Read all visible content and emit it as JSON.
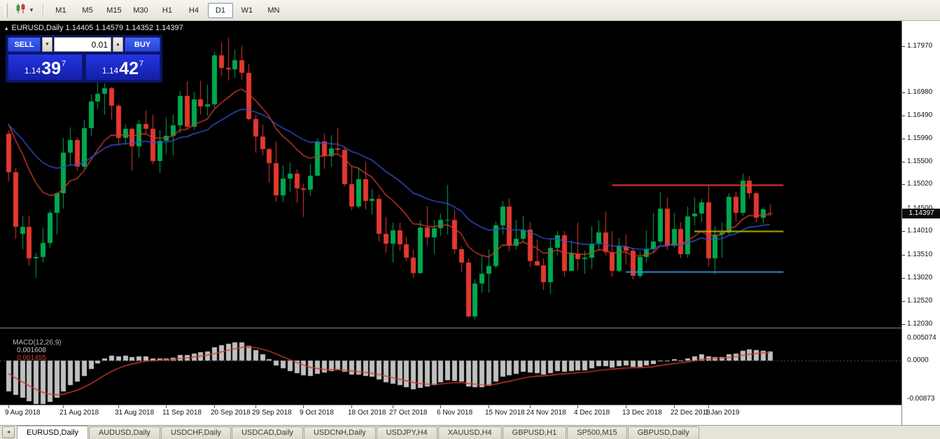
{
  "toolbar": {
    "chart_type_dropdown_icon": "candlestick-chart-icon",
    "timeframes": [
      "M1",
      "M5",
      "M15",
      "M30",
      "H1",
      "H4",
      "D1",
      "W1",
      "MN"
    ],
    "active_timeframe": "D1"
  },
  "chart": {
    "header": {
      "symbol": "EURUSD,Daily",
      "open": "1.14405",
      "high": "1.14579",
      "low": "1.14352",
      "close": "1.14397"
    },
    "trade_panel": {
      "sell_label": "SELL",
      "buy_label": "BUY",
      "volume": "0.01",
      "sell_price": {
        "base": "1.14",
        "pips": "39",
        "point": "7"
      },
      "buy_price": {
        "base": "1.14",
        "pips": "42",
        "point": "7"
      }
    },
    "price_axis_labels": [
      "1.17970",
      "1.16980",
      "1.16490",
      "1.15990",
      "1.15500",
      "1.15020",
      "1.14500",
      "1.14010",
      "1.13510",
      "1.13020",
      "1.12520",
      "1.12030"
    ],
    "current_price": "1.14397"
  },
  "macd_panel": {
    "name": "MACD(12,26,9)",
    "value_main": "0.001608",
    "value_signal": "0.001455",
    "scale_labels": [
      "0.005074",
      "0.0000",
      "-0.00873"
    ],
    "scale_values": [
      0.005074,
      0.0,
      -0.00873
    ]
  },
  "time_axis": {
    "labels": [
      {
        "text": "9 Aug 2018",
        "bar": 0
      },
      {
        "text": "21 Aug 2018",
        "bar": 8
      },
      {
        "text": "31 Aug 2018",
        "bar": 16
      },
      {
        "text": "11 Sep 2018",
        "bar": 23
      },
      {
        "text": "20 Sep 2018",
        "bar": 30
      },
      {
        "text": "29 Sep 2018",
        "bar": 36
      },
      {
        "text": "9 Oct 2018",
        "bar": 43
      },
      {
        "text": "18 Oct 2018",
        "bar": 50
      },
      {
        "text": "27 Oct 2018",
        "bar": 56
      },
      {
        "text": "6 Nov 2018",
        "bar": 63
      },
      {
        "text": "15 Nov 2018",
        "bar": 70
      },
      {
        "text": "24 Nov 2018",
        "bar": 76
      },
      {
        "text": "4 Dec 2018",
        "bar": 83
      },
      {
        "text": "13 Dec 2018",
        "bar": 90
      },
      {
        "text": "22 Dec 2018",
        "bar": 97
      },
      {
        "text": "1 Jan 2019",
        "bar": 102
      }
    ]
  },
  "tabs": {
    "items": [
      "EURUSD,Daily",
      "AUDUSD,Daily",
      "USDCHF,Daily",
      "USDCAD,Daily",
      "USDCNH,Daily",
      "USDJPY,H4",
      "XAUUSD,H4",
      "GBPUSD,H1",
      "SP500,M15",
      "GBPUSD,Daily"
    ],
    "active": "EURUSD,Daily"
  },
  "chart_data": {
    "type": "candlestick",
    "title": "EURUSD,Daily",
    "last_bar_ohlc": {
      "open": 1.14405,
      "high": 1.14579,
      "low": 1.14352,
      "close": 1.14397
    },
    "colors": {
      "background": "#000000",
      "bull": "#00A94F",
      "bear": "#E2382F",
      "ma_fast": "#CF3A2E",
      "ma_slow": "#3450D2"
    },
    "y_axis": {
      "min": 1.1195,
      "max": 1.1836
    },
    "bars": [
      [
        1.161,
        1.1618,
        1.1508,
        1.1527
      ],
      [
        1.1527,
        1.1536,
        1.1385,
        1.141
      ],
      [
        1.1395,
        1.1433,
        1.1363,
        1.141
      ],
      [
        1.141,
        1.1434,
        1.1329,
        1.1343
      ],
      [
        1.1343,
        1.1355,
        1.1301,
        1.1346
      ],
      [
        1.1346,
        1.1409,
        1.1334,
        1.1376
      ],
      [
        1.1376,
        1.1446,
        1.1365,
        1.144
      ],
      [
        1.144,
        1.1485,
        1.1394,
        1.1483
      ],
      [
        1.1483,
        1.1601,
        1.145,
        1.157
      ],
      [
        1.157,
        1.1623,
        1.1544,
        1.1597
      ],
      [
        1.1597,
        1.1603,
        1.153,
        1.154
      ],
      [
        1.154,
        1.164,
        1.1535,
        1.1622
      ],
      [
        1.1622,
        1.1693,
        1.1605,
        1.1679
      ],
      [
        1.1679,
        1.1734,
        1.1662,
        1.1695
      ],
      [
        1.1695,
        1.1717,
        1.165,
        1.1707
      ],
      [
        1.1707,
        1.171,
        1.164,
        1.167
      ],
      [
        1.167,
        1.1675,
        1.1585,
        1.1601
      ],
      [
        1.1601,
        1.163,
        1.1586,
        1.1621
      ],
      [
        1.1621,
        1.1623,
        1.153,
        1.1583
      ],
      [
        1.1583,
        1.164,
        1.1559,
        1.1631
      ],
      [
        1.1631,
        1.1659,
        1.161,
        1.162
      ],
      [
        1.162,
        1.165,
        1.1546,
        1.1552
      ],
      [
        1.1552,
        1.1617,
        1.1526,
        1.1595
      ],
      [
        1.1595,
        1.1645,
        1.1566,
        1.1605
      ],
      [
        1.1605,
        1.165,
        1.1563,
        1.1628
      ],
      [
        1.1628,
        1.1701,
        1.1611,
        1.169
      ],
      [
        1.169,
        1.1722,
        1.162,
        1.1625
      ],
      [
        1.1625,
        1.1699,
        1.1619,
        1.1683
      ],
      [
        1.1683,
        1.1724,
        1.1651,
        1.1668
      ],
      [
        1.1668,
        1.1715,
        1.1649,
        1.1673
      ],
      [
        1.1673,
        1.1785,
        1.1666,
        1.1778
      ],
      [
        1.1778,
        1.1804,
        1.1732,
        1.1751
      ],
      [
        1.1751,
        1.1815,
        1.1724,
        1.1748
      ],
      [
        1.1748,
        1.179,
        1.173,
        1.1767
      ],
      [
        1.1767,
        1.1799,
        1.1725,
        1.174
      ],
      [
        1.174,
        1.176,
        1.1638,
        1.1641
      ],
      [
        1.1641,
        1.1652,
        1.157,
        1.1604
      ],
      [
        1.1604,
        1.1629,
        1.1564,
        1.1577
      ],
      [
        1.1577,
        1.158,
        1.1505,
        1.1547
      ],
      [
        1.1547,
        1.1594,
        1.1464,
        1.1478
      ],
      [
        1.1478,
        1.1543,
        1.1463,
        1.1514
      ],
      [
        1.1514,
        1.1549,
        1.1485,
        1.1524
      ],
      [
        1.1524,
        1.1534,
        1.1461,
        1.1493
      ],
      [
        1.1493,
        1.1504,
        1.1432,
        1.149
      ],
      [
        1.149,
        1.1545,
        1.1477,
        1.152
      ],
      [
        1.152,
        1.1599,
        1.1518,
        1.1593
      ],
      [
        1.1593,
        1.161,
        1.1535,
        1.1562
      ],
      [
        1.1562,
        1.1607,
        1.154,
        1.1579
      ],
      [
        1.1579,
        1.1622,
        1.1565,
        1.1575
      ],
      [
        1.1575,
        1.1581,
        1.1497,
        1.1502
      ],
      [
        1.1502,
        1.1541,
        1.1447,
        1.1454
      ],
      [
        1.1454,
        1.1535,
        1.1449,
        1.1513
      ],
      [
        1.1513,
        1.155,
        1.1448,
        1.1466
      ],
      [
        1.1466,
        1.1492,
        1.1438,
        1.1471
      ],
      [
        1.1471,
        1.148,
        1.1379,
        1.1395
      ],
      [
        1.1395,
        1.1432,
        1.1355,
        1.1374
      ],
      [
        1.1374,
        1.142,
        1.1335,
        1.1403
      ],
      [
        1.1403,
        1.142,
        1.136,
        1.1373
      ],
      [
        1.1373,
        1.1389,
        1.1337,
        1.1345
      ],
      [
        1.1345,
        1.1362,
        1.1302,
        1.1312
      ],
      [
        1.1312,
        1.1424,
        1.1311,
        1.1409
      ],
      [
        1.1409,
        1.1456,
        1.1371,
        1.1388
      ],
      [
        1.1388,
        1.1425,
        1.1352,
        1.1407
      ],
      [
        1.1407,
        1.1439,
        1.1391,
        1.1426
      ],
      [
        1.1426,
        1.15,
        1.1394,
        1.1426
      ],
      [
        1.1426,
        1.1447,
        1.1352,
        1.1363
      ],
      [
        1.1363,
        1.1368,
        1.1315,
        1.1335
      ],
      [
        1.1335,
        1.1343,
        1.1216,
        1.1219
      ],
      [
        1.1219,
        1.1298,
        1.1213,
        1.129
      ],
      [
        1.129,
        1.1348,
        1.127,
        1.1311
      ],
      [
        1.1311,
        1.1362,
        1.127,
        1.1327
      ],
      [
        1.1327,
        1.1421,
        1.1322,
        1.1414
      ],
      [
        1.1414,
        1.1466,
        1.1394,
        1.1454
      ],
      [
        1.1454,
        1.1472,
        1.1358,
        1.137
      ],
      [
        1.137,
        1.1425,
        1.1362,
        1.1385
      ],
      [
        1.1385,
        1.1435,
        1.1378,
        1.1405
      ],
      [
        1.1405,
        1.1421,
        1.1325,
        1.1337
      ],
      [
        1.1337,
        1.1383,
        1.1327,
        1.1329
      ],
      [
        1.1329,
        1.1344,
        1.1276,
        1.1292
      ],
      [
        1.1292,
        1.1387,
        1.1267,
        1.1366
      ],
      [
        1.1366,
        1.1401,
        1.1349,
        1.1392
      ],
      [
        1.1392,
        1.1401,
        1.1305,
        1.1317
      ],
      [
        1.1317,
        1.138,
        1.1317,
        1.1354
      ],
      [
        1.1354,
        1.142,
        1.1318,
        1.1342
      ],
      [
        1.1342,
        1.136,
        1.131,
        1.1345
      ],
      [
        1.1345,
        1.1412,
        1.1321,
        1.1375
      ],
      [
        1.1375,
        1.1424,
        1.1359,
        1.1399
      ],
      [
        1.1399,
        1.1443,
        1.135,
        1.1356
      ],
      [
        1.1356,
        1.1401,
        1.1305,
        1.1317
      ],
      [
        1.1317,
        1.1386,
        1.1314,
        1.1368
      ],
      [
        1.1368,
        1.1394,
        1.133,
        1.136
      ],
      [
        1.136,
        1.1365,
        1.1298,
        1.1306
      ],
      [
        1.1306,
        1.1358,
        1.1301,
        1.1347
      ],
      [
        1.1347,
        1.1403,
        1.1335,
        1.1362
      ],
      [
        1.1362,
        1.144,
        1.1355,
        1.1379
      ],
      [
        1.1379,
        1.1486,
        1.1375,
        1.1449
      ],
      [
        1.1449,
        1.1473,
        1.1361,
        1.137
      ],
      [
        1.137,
        1.1441,
        1.1365,
        1.1406
      ],
      [
        1.1406,
        1.1421,
        1.1344,
        1.1353
      ],
      [
        1.1353,
        1.1454,
        1.1345,
        1.1433
      ],
      [
        1.1433,
        1.1474,
        1.1413,
        1.1439
      ],
      [
        1.1439,
        1.147,
        1.1421,
        1.1463
      ],
      [
        1.1463,
        1.1497,
        1.1325,
        1.1343
      ],
      [
        1.1343,
        1.1412,
        1.1309,
        1.1394
      ],
      [
        1.1394,
        1.142,
        1.1345,
        1.1398
      ],
      [
        1.1398,
        1.1483,
        1.1394,
        1.1475
      ],
      [
        1.1475,
        1.1485,
        1.1422,
        1.1441
      ],
      [
        1.1441,
        1.1525,
        1.1435,
        1.151
      ],
      [
        1.151,
        1.1518,
        1.147,
        1.1482
      ],
      [
        1.1482,
        1.1487,
        1.142,
        1.143
      ],
      [
        1.143,
        1.1452,
        1.1418,
        1.1448
      ],
      [
        1.14405,
        1.14579,
        1.14352,
        1.14397
      ]
    ],
    "overlays": [
      {
        "name": "ma_fast",
        "type": "ema",
        "period": 12,
        "color": "#CF3A2E",
        "seed": 1.165
      },
      {
        "name": "ma_slow",
        "type": "ema",
        "period": 26,
        "color": "#3450D2",
        "seed": 1.1638
      }
    ],
    "objects": [
      {
        "type": "horizontal-segment",
        "price": 1.15,
        "from_bar": 88,
        "to_bar": 113,
        "color": "#F43B2D",
        "width": 2
      },
      {
        "type": "horizontal-segment",
        "price": 1.1401,
        "from_bar": 100,
        "to_bar": 113,
        "color": "#B3B300",
        "width": 2
      },
      {
        "type": "horizontal-segment",
        "price": 1.1315,
        "from_bar": 90,
        "to_bar": 113,
        "color": "#2D8FE0",
        "width": 2
      }
    ],
    "indicator": {
      "name": "MACD",
      "fast": 12,
      "slow": 26,
      "signal": 9,
      "histogram_color": "#C0C0C0",
      "signal_color": "#CF3A2E",
      "y_axis": {
        "min": -0.00975,
        "max": 0.0062
      },
      "seeds": {
        "ema_fast": 1.159,
        "ema_slow": 1.166,
        "signal": -0.002
      }
    }
  }
}
